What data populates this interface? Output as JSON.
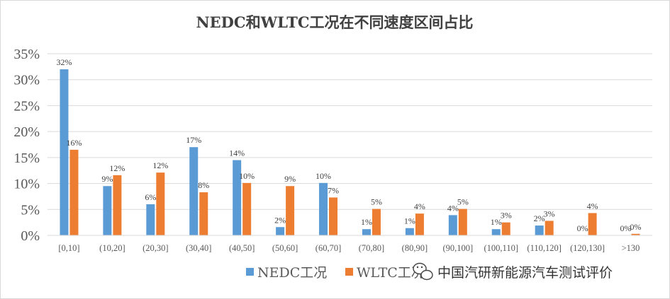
{
  "chart_data": {
    "type": "bar",
    "title": "NEDC和WLTC工况在不同速度区间占比",
    "categories": [
      "[0,10]",
      "(10,20]",
      "(20,30]",
      "(30,40]",
      "(40,50]",
      "(50,60]",
      "(60,70]",
      "(70,80]",
      "(80,90]",
      "(90,100]",
      "(100,110]",
      "(110,120]",
      "(120,130]",
      ">130"
    ],
    "series": [
      {
        "name": "NEDC工况",
        "color": "#5b9bd5",
        "values": [
          32,
          9.5,
          6,
          17,
          14.5,
          1.6,
          10.1,
          1.2,
          1.4,
          3.9,
          1.2,
          1.9,
          0,
          0
        ],
        "labels": [
          "32%",
          "9%",
          "6%",
          "17%",
          "14%",
          "2%",
          "10%",
          "1%",
          "1%",
          "4%",
          "1%",
          "2%",
          "0%",
          "0%"
        ]
      },
      {
        "name": "WLTC工况",
        "color": "#ed7d31",
        "values": [
          16.5,
          11.6,
          12.1,
          8.3,
          10.1,
          9.5,
          7.3,
          5.1,
          4.2,
          5.1,
          2.5,
          2.8,
          4.3,
          0.3
        ],
        "labels": [
          "16%",
          "12%",
          "12%",
          "8%",
          "10%",
          "9%",
          "7%",
          "5%",
          "4%",
          "5%",
          "3%",
          "3%",
          "4%",
          "0%"
        ]
      }
    ],
    "ylim": [
      0,
      35
    ],
    "yticks": [
      "0%",
      "5%",
      "10%",
      "15%",
      "20%",
      "25%",
      "30%",
      "35%"
    ],
    "grid": true,
    "legend": "bottom-right"
  },
  "watermark": {
    "text": "中国汽研新能源汽车测试评价",
    "icon": "wechat-icon"
  }
}
